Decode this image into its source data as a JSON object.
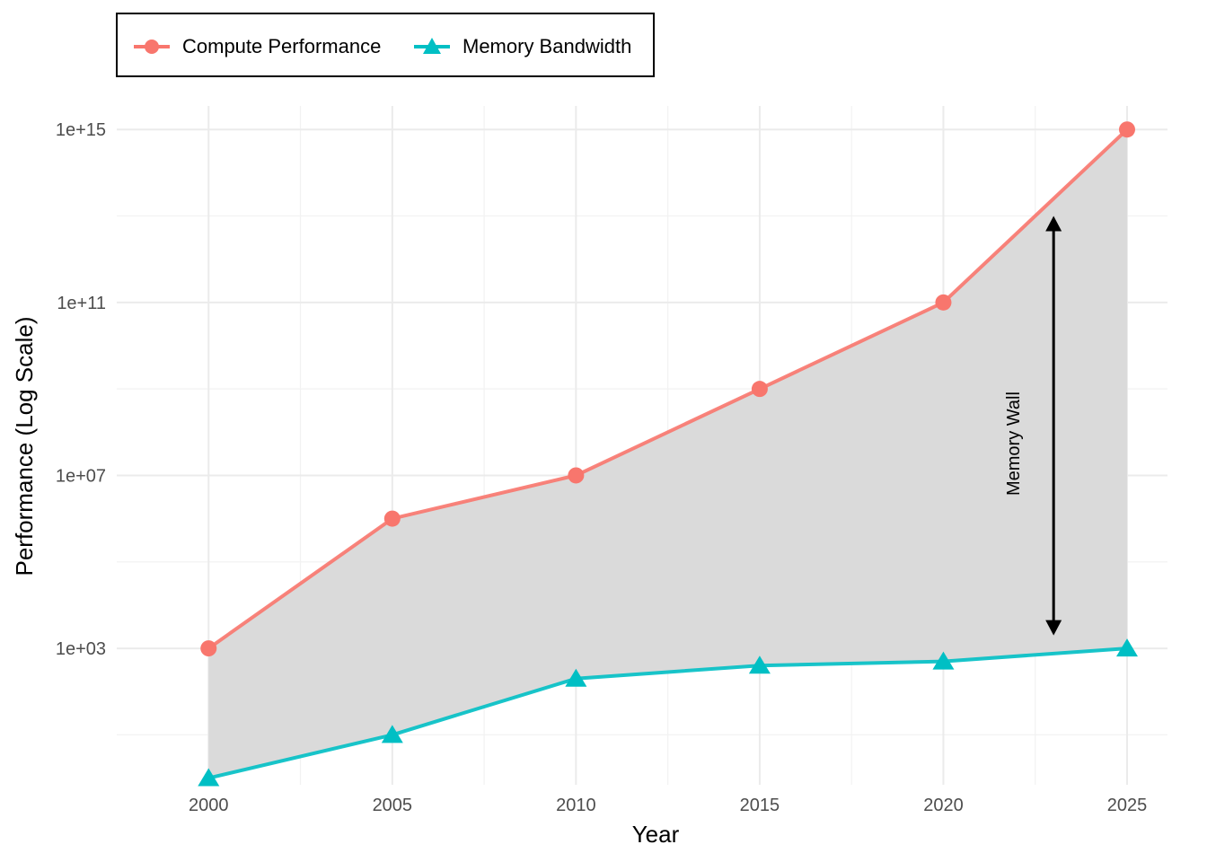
{
  "chart_data": {
    "type": "line",
    "xlabel": "Year",
    "ylabel": "Performance (Log Scale)",
    "y_scale": "log10",
    "x": [
      2000,
      2005,
      2010,
      2015,
      2020,
      2025
    ],
    "x_ticks": [
      "2000",
      "2005",
      "2010",
      "2015",
      "2020",
      "2025"
    ],
    "y_ticks": [
      {
        "value": 1000.0,
        "label": "1e+03"
      },
      {
        "value": 10000000.0,
        "label": "1e+07"
      },
      {
        "value": 100000000000.0,
        "label": "1e+11"
      },
      {
        "value": 1000000000000000.0,
        "label": "1e+15"
      }
    ],
    "xlim": [
      1997.5,
      2026.1
    ],
    "ylim": [
      0.7,
      3500000000000000.0
    ],
    "series": [
      {
        "name": "Compute Performance",
        "color": "#f8766d",
        "marker": "circle",
        "values": [
          1000,
          1000000,
          10000000,
          1000000000,
          100000000000,
          1000000000000000
        ]
      },
      {
        "name": "Memory Bandwidth",
        "color": "#00bfc4",
        "marker": "triangle",
        "values": [
          1,
          10,
          200,
          400,
          500,
          1000
        ]
      }
    ],
    "fill_between": {
      "color": "#d9d9d9",
      "between": [
        "Compute Performance",
        "Memory Bandwidth"
      ]
    },
    "annotation": {
      "text": "Memory Wall",
      "x": 2023,
      "y_from": 2000,
      "y_to": 10000000000000.0,
      "arrow": "double"
    },
    "legend": {
      "position": "top-left",
      "items": [
        "Compute Performance",
        "Memory Bandwidth"
      ]
    },
    "grid": true
  }
}
